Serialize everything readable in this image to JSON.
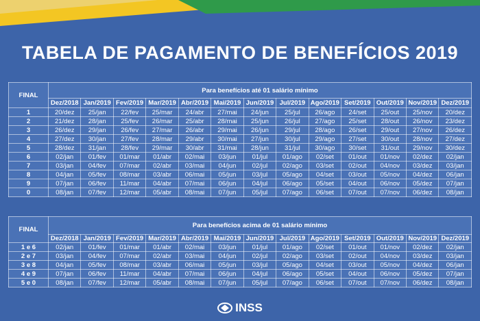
{
  "title": "TABELA DE PAGAMENTO DE BENEFÍCIOS 2019",
  "tables": [
    {
      "corner": "FINAL",
      "caption": "Para benefícios até 01 salário mínimo",
      "months": [
        "Dez/2018",
        "Jan/2019",
        "Fev/2019",
        "Mar/2019",
        "Abr/2019",
        "Mai/2019",
        "Jun/2019",
        "Jul/2019",
        "Ago/2019",
        "Set/2019",
        "Out/2019",
        "Nov/2019",
        "Dez/2019"
      ],
      "rows": [
        {
          "final": "1",
          "dates": [
            "20/dez",
            "25/jan",
            "22/fev",
            "25/mar",
            "24/abr",
            "27/mai",
            "24/jun",
            "25/jul",
            "26/ago",
            "24/set",
            "25/out",
            "25/nov",
            "20/dez"
          ]
        },
        {
          "final": "2",
          "dates": [
            "21/dez",
            "28/jan",
            "25/fev",
            "26/mar",
            "25/abr",
            "28/mai",
            "25/jun",
            "26/jul",
            "27/ago",
            "25/set",
            "28/out",
            "26/nov",
            "23/dez"
          ]
        },
        {
          "final": "3",
          "dates": [
            "26/dez",
            "29/jan",
            "26/fev",
            "27/mar",
            "26/abr",
            "29/mai",
            "26/jun",
            "29/jul",
            "28/ago",
            "26/set",
            "29/out",
            "27/nov",
            "26/dez"
          ]
        },
        {
          "final": "4",
          "dates": [
            "27/dez",
            "30/jan",
            "27/fev",
            "28/mar",
            "29/abr",
            "30/mai",
            "27/jun",
            "30/jul",
            "29/ago",
            "27/set",
            "30/out",
            "28/nov",
            "27/dez"
          ]
        },
        {
          "final": "5",
          "dates": [
            "28/dez",
            "31/jan",
            "28/fev",
            "29/mar",
            "30/abr",
            "31/mai",
            "28/jun",
            "31/jul",
            "30/ago",
            "30/set",
            "31/out",
            "29/nov",
            "30/dez"
          ]
        },
        {
          "final": "6",
          "dates": [
            "02/jan",
            "01/fev",
            "01/mar",
            "01/abr",
            "02/mai",
            "03/jun",
            "01/jul",
            "01/ago",
            "02/set",
            "01/out",
            "01/nov",
            "02/dez",
            "02/jan"
          ]
        },
        {
          "final": "7",
          "dates": [
            "03/jan",
            "04/fev",
            "07/mar",
            "02/abr",
            "03/mai",
            "04/jun",
            "02/jul",
            "02/ago",
            "03/set",
            "02/out",
            "04/nov",
            "03/dez",
            "03/jan"
          ]
        },
        {
          "final": "8",
          "dates": [
            "04/jan",
            "05/fev",
            "08/mar",
            "03/abr",
            "06/mai",
            "05/jun",
            "03/jul",
            "05/ago",
            "04/set",
            "03/out",
            "05/nov",
            "04/dez",
            "06/jan"
          ]
        },
        {
          "final": "9",
          "dates": [
            "07/jan",
            "06/fev",
            "11/mar",
            "04/abr",
            "07/mai",
            "06/jun",
            "04/jul",
            "06/ago",
            "05/set",
            "04/out",
            "06/nov",
            "05/dez",
            "07/jan"
          ]
        },
        {
          "final": "0",
          "dates": [
            "08/jan",
            "07/fev",
            "12/mar",
            "05/abr",
            "08/mai",
            "07/jun",
            "05/jul",
            "07/ago",
            "06/set",
            "07/out",
            "07/nov",
            "06/dez",
            "08/jan"
          ]
        }
      ]
    },
    {
      "corner": "FINAL",
      "caption": "Para benefícios acima de 01 salário mínimo",
      "months": [
        "Dez/2018",
        "Jan/2019",
        "Fev/2019",
        "Mar/2019",
        "Abr/2019",
        "Mai/2019",
        "Jun/2019",
        "Jul/2019",
        "Ago/2019",
        "Set/2019",
        "Out/2019",
        "Nov/2019",
        "Dez/2019"
      ],
      "rows": [
        {
          "final": "1 e 6",
          "dates": [
            "02/jan",
            "01/fev",
            "01/mar",
            "01/abr",
            "02/mai",
            "03/jun",
            "01/jul",
            "01/ago",
            "02/set",
            "01/out",
            "01/nov",
            "02/dez",
            "02/jan"
          ]
        },
        {
          "final": "2 e 7",
          "dates": [
            "03/jan",
            "04/fev",
            "07/mar",
            "02/abr",
            "03/mai",
            "04/jun",
            "02/jul",
            "02/ago",
            "03/set",
            "02/out",
            "04/nov",
            "03/dez",
            "03/jan"
          ]
        },
        {
          "final": "3 e 8",
          "dates": [
            "04/jan",
            "05/fev",
            "08/mar",
            "03/abr",
            "06/mai",
            "05/jun",
            "03/jul",
            "05/ago",
            "04/set",
            "03/out",
            "05/nov",
            "04/dez",
            "06/jan"
          ]
        },
        {
          "final": "4 e 9",
          "dates": [
            "07/jan",
            "06/fev",
            "11/mar",
            "04/abr",
            "07/mai",
            "06/jun",
            "04/jul",
            "06/ago",
            "05/set",
            "04/out",
            "06/nov",
            "05/dez",
            "07/jan"
          ]
        },
        {
          "final": "5 e 0",
          "dates": [
            "08/jan",
            "07/fev",
            "12/mar",
            "05/abr",
            "08/mai",
            "07/jun",
            "05/jul",
            "07/ago",
            "06/set",
            "07/out",
            "07/nov",
            "06/dez",
            "08/jan"
          ]
        }
      ]
    }
  ],
  "logo": "INSS"
}
